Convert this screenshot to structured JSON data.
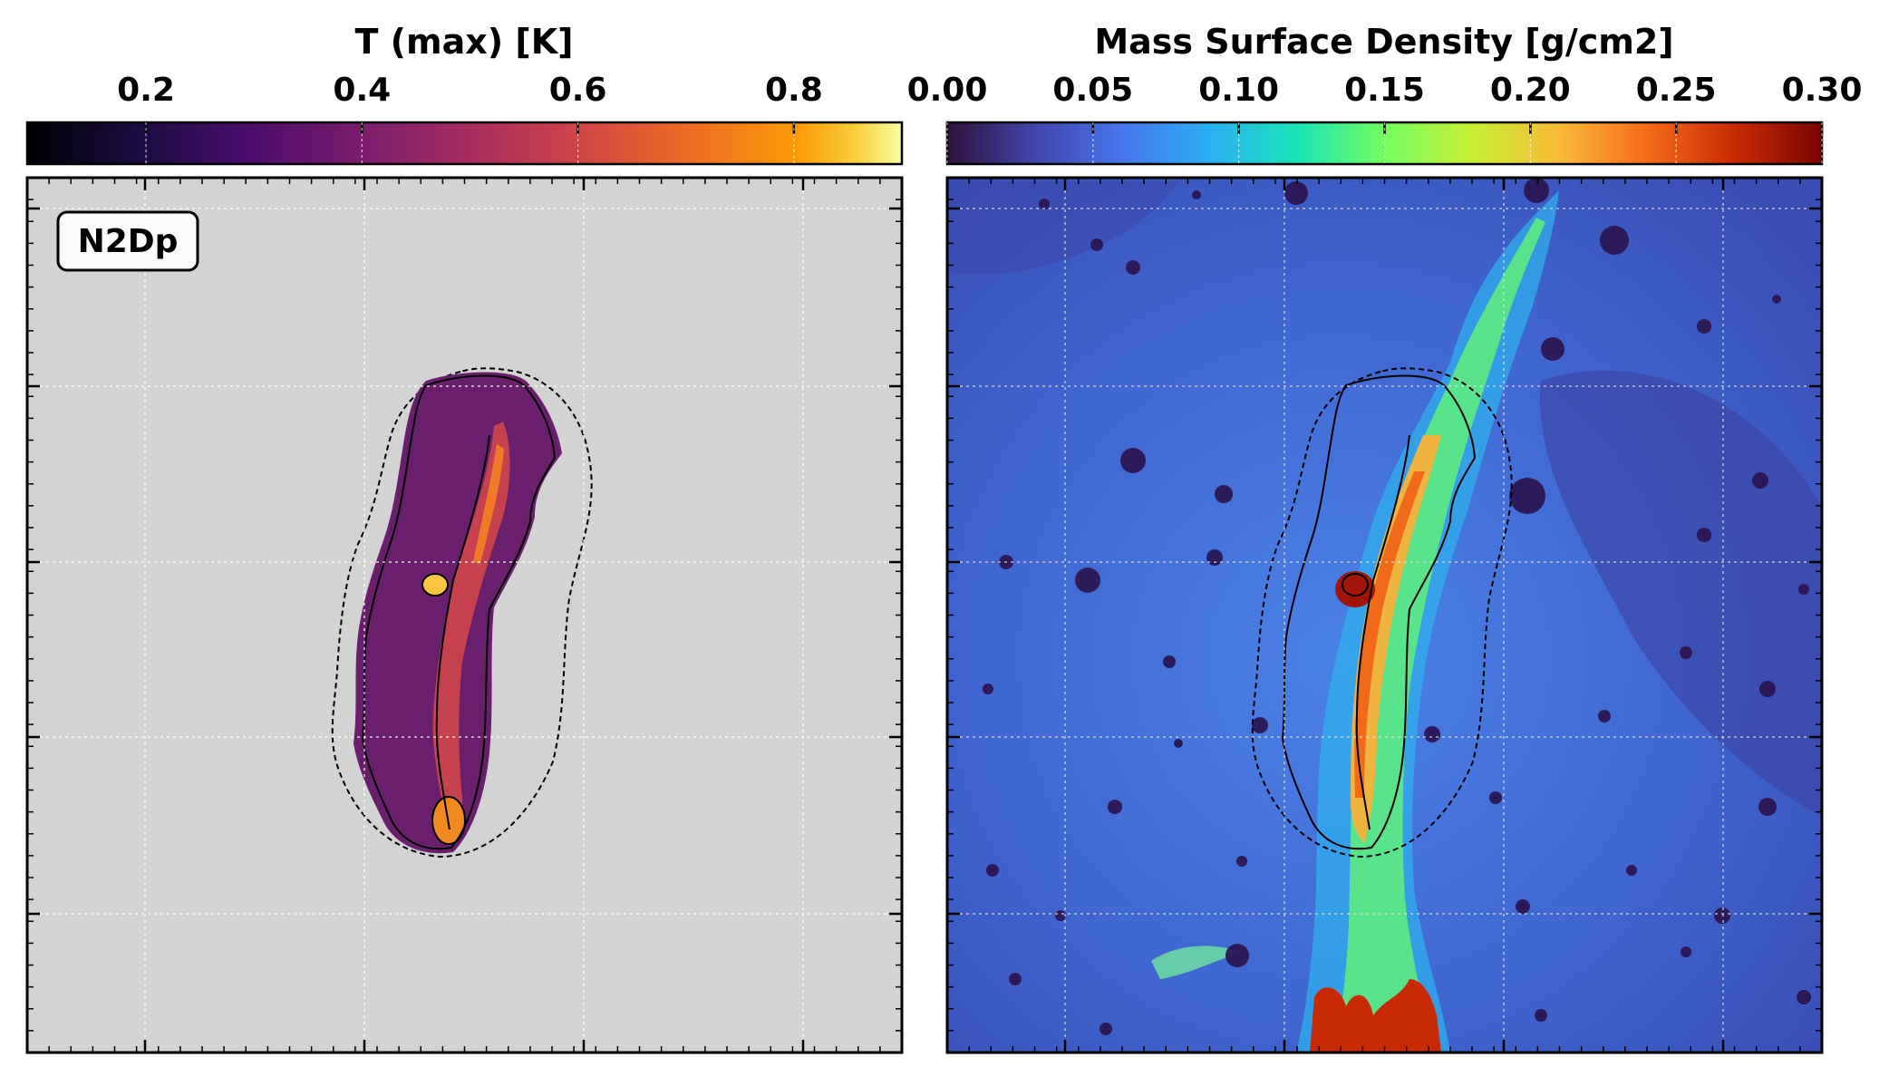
{
  "chart_data": [
    {
      "type": "heatmap",
      "colorbar": {
        "label": "T (max) [K]",
        "colormap": "inferno",
        "ticks": [
          0.2,
          0.4,
          0.6,
          0.8
        ],
        "tick_labels": [
          "0.2",
          "0.4",
          "0.6",
          "0.8"
        ],
        "range": [
          0.09,
          0.9
        ]
      },
      "label": "N2Dp",
      "background": "#d3d3d3",
      "grid": true,
      "axis_tick_labels": false
    },
    {
      "type": "heatmap",
      "colorbar": {
        "label": "Mass Surface Density [g/cm2]",
        "colormap": "turbo",
        "ticks": [
          0.0,
          0.05,
          0.1,
          0.15,
          0.2,
          0.25,
          0.3
        ],
        "tick_labels": [
          "0.00",
          "0.05",
          "0.10",
          "0.15",
          "0.20",
          "0.25",
          "0.30"
        ],
        "range": [
          0.0,
          0.3
        ]
      },
      "grid": true,
      "axis_tick_labels": false
    }
  ]
}
